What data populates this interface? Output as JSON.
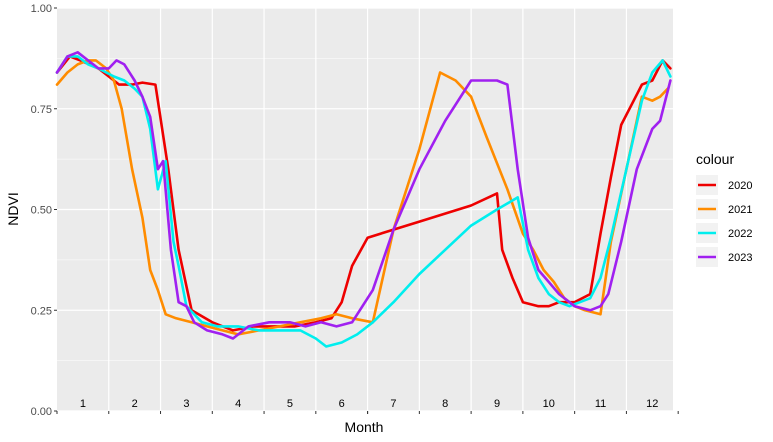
{
  "chart_data": {
    "type": "line",
    "xlabel": "Month",
    "ylabel": "NDVI",
    "xlim": [
      0.5,
      12.4
    ],
    "ylim": [
      0,
      1
    ],
    "x_tick_labels": [
      "1",
      "2",
      "3",
      "4",
      "5",
      "6",
      "7",
      "8",
      "9",
      "10",
      "11",
      "12"
    ],
    "y_ticks": [
      0.0,
      0.25,
      0.5,
      0.75,
      1.0
    ],
    "y_tick_labels": [
      "0.00",
      "0.25",
      "0.50",
      "0.75",
      "1.00"
    ],
    "grid": true,
    "legend": {
      "title": "colour",
      "position": "right"
    },
    "series": [
      {
        "name": "2020",
        "color": "#ee0000",
        "x": [
          0.5,
          0.75,
          0.95,
          1.3,
          1.5,
          1.7,
          1.95,
          2.15,
          2.4,
          2.65,
          2.85,
          3.1,
          3.5,
          3.9,
          4.3,
          4.7,
          5.1,
          5.5,
          5.8,
          6.0,
          6.2,
          6.5,
          7.5,
          8.5,
          9.0,
          9.1,
          9.3,
          9.5,
          9.8,
          10.0,
          10.2,
          10.5,
          10.8,
          11.0,
          11.2,
          11.4,
          11.6,
          11.8,
          12.0,
          12.2,
          12.35
        ],
        "y": [
          0.84,
          0.88,
          0.87,
          0.85,
          0.83,
          0.81,
          0.81,
          0.815,
          0.81,
          0.6,
          0.4,
          0.25,
          0.22,
          0.2,
          0.21,
          0.21,
          0.21,
          0.22,
          0.23,
          0.27,
          0.36,
          0.43,
          0.47,
          0.51,
          0.54,
          0.4,
          0.33,
          0.27,
          0.26,
          0.26,
          0.27,
          0.27,
          0.29,
          0.44,
          0.58,
          0.71,
          0.76,
          0.81,
          0.82,
          0.87,
          0.85
        ]
      },
      {
        "name": "2021",
        "color": "#ff8c00",
        "x": [
          0.5,
          0.7,
          0.9,
          1.1,
          1.25,
          1.45,
          1.6,
          1.75,
          1.95,
          2.15,
          2.3,
          2.45,
          2.6,
          2.8,
          3.1,
          3.4,
          3.7,
          4.0,
          4.4,
          4.8,
          5.2,
          5.6,
          5.9,
          6.2,
          6.6,
          7.0,
          7.5,
          7.9,
          8.2,
          8.5,
          8.8,
          9.2,
          9.5,
          9.7,
          9.9,
          10.1,
          10.3,
          10.5,
          10.7,
          11.0,
          11.2,
          11.5,
          11.8,
          12.0,
          12.15,
          12.3
        ],
        "y": [
          0.81,
          0.84,
          0.86,
          0.87,
          0.87,
          0.85,
          0.82,
          0.75,
          0.6,
          0.48,
          0.35,
          0.3,
          0.24,
          0.23,
          0.22,
          0.21,
          0.2,
          0.19,
          0.2,
          0.21,
          0.22,
          0.23,
          0.24,
          0.23,
          0.22,
          0.45,
          0.65,
          0.84,
          0.82,
          0.78,
          0.68,
          0.55,
          0.44,
          0.4,
          0.35,
          0.32,
          0.28,
          0.26,
          0.25,
          0.24,
          0.42,
          0.6,
          0.78,
          0.77,
          0.78,
          0.8
        ]
      },
      {
        "name": "2022",
        "color": "#00eeee",
        "x": [
          0.5,
          0.7,
          0.9,
          1.1,
          1.3,
          1.6,
          1.8,
          2.0,
          2.15,
          2.3,
          2.45,
          2.6,
          2.75,
          2.85,
          3.0,
          3.3,
          3.6,
          4.0,
          4.4,
          4.8,
          5.2,
          5.5,
          5.7,
          6.0,
          6.3,
          6.6,
          7.0,
          7.5,
          8.0,
          8.5,
          9.0,
          9.4,
          9.6,
          9.8,
          10.0,
          10.2,
          10.4,
          10.6,
          10.8,
          11.0,
          11.2,
          11.5,
          11.8,
          12.0,
          12.2,
          12.35
        ],
        "y": [
          0.84,
          0.88,
          0.88,
          0.86,
          0.85,
          0.83,
          0.82,
          0.8,
          0.78,
          0.7,
          0.55,
          0.62,
          0.42,
          0.36,
          0.26,
          0.22,
          0.21,
          0.21,
          0.2,
          0.2,
          0.2,
          0.18,
          0.16,
          0.17,
          0.19,
          0.22,
          0.27,
          0.34,
          0.4,
          0.46,
          0.5,
          0.53,
          0.4,
          0.33,
          0.29,
          0.27,
          0.26,
          0.27,
          0.28,
          0.33,
          0.43,
          0.6,
          0.77,
          0.84,
          0.87,
          0.83
        ]
      },
      {
        "name": "2023",
        "color": "#a020f0",
        "x": [
          0.5,
          0.7,
          0.9,
          1.1,
          1.3,
          1.5,
          1.65,
          1.8,
          2.0,
          2.15,
          2.3,
          2.45,
          2.55,
          2.7,
          2.85,
          3.0,
          3.15,
          3.4,
          3.7,
          3.9,
          4.2,
          4.6,
          5.0,
          5.3,
          5.6,
          5.9,
          6.2,
          6.6,
          7.0,
          7.5,
          8.0,
          8.5,
          9.0,
          9.2,
          9.4,
          9.6,
          9.8,
          10.0,
          10.2,
          10.5,
          10.8,
          11.0,
          11.15,
          11.4,
          11.7,
          12.0,
          12.15,
          12.35
        ],
        "y": [
          0.84,
          0.88,
          0.89,
          0.87,
          0.85,
          0.85,
          0.87,
          0.86,
          0.82,
          0.78,
          0.73,
          0.6,
          0.62,
          0.4,
          0.27,
          0.26,
          0.22,
          0.2,
          0.19,
          0.18,
          0.21,
          0.22,
          0.22,
          0.21,
          0.22,
          0.21,
          0.22,
          0.3,
          0.45,
          0.6,
          0.72,
          0.82,
          0.82,
          0.81,
          0.6,
          0.43,
          0.35,
          0.32,
          0.29,
          0.26,
          0.25,
          0.26,
          0.29,
          0.42,
          0.6,
          0.7,
          0.72,
          0.82
        ]
      }
    ]
  }
}
